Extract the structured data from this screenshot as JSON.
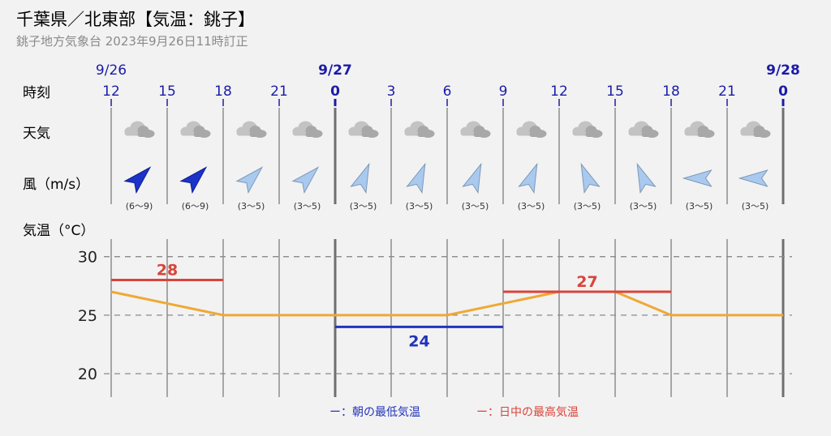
{
  "header": {
    "title": "千葉県／北東部【気温：銚子】",
    "subtitle": "銚子地方気象台 2023年9月26日11時訂正"
  },
  "row_labels": {
    "time": "時刻",
    "weather": "天気",
    "wind": "風（m/s）",
    "temp": "気温（°C）"
  },
  "dates": [
    {
      "label": "9/26",
      "col": 0
    },
    {
      "label": "9/27",
      "col": 4
    },
    {
      "label": "9/28",
      "col": 12
    }
  ],
  "hours": [
    "12",
    "15",
    "18",
    "21",
    "0",
    "3",
    "6",
    "9",
    "12",
    "15",
    "18",
    "21",
    "0"
  ],
  "day_boundary_cols": [
    4,
    12
  ],
  "weather": [
    "cloudy",
    "cloudy",
    "cloudy",
    "cloudy",
    "cloudy",
    "cloudy",
    "cloudy",
    "cloudy",
    "cloudy",
    "cloudy",
    "cloudy",
    "cloudy"
  ],
  "wind": [
    {
      "speed": "(6〜9)",
      "dir": "SW",
      "strong": true
    },
    {
      "speed": "(6〜9)",
      "dir": "SW",
      "strong": true
    },
    {
      "speed": "(3〜5)",
      "dir": "SW",
      "strong": false
    },
    {
      "speed": "(3〜5)",
      "dir": "SW",
      "strong": false
    },
    {
      "speed": "(3〜5)",
      "dir": "SSW",
      "strong": false
    },
    {
      "speed": "(3〜5)",
      "dir": "SSW",
      "strong": false
    },
    {
      "speed": "(3〜5)",
      "dir": "SSW",
      "strong": false
    },
    {
      "speed": "(3〜5)",
      "dir": "SSW",
      "strong": false
    },
    {
      "speed": "(3〜5)",
      "dir": "SSE",
      "strong": false
    },
    {
      "speed": "(3〜5)",
      "dir": "SSE",
      "strong": false
    },
    {
      "speed": "(3〜5)",
      "dir": "E",
      "strong": false
    },
    {
      "speed": "(3〜5)",
      "dir": "E",
      "strong": false
    }
  ],
  "colors": {
    "date": "#1c1ca8",
    "temp_line": "#f0a834",
    "max": "#d9443a",
    "min": "#2233bb",
    "wind_strong": "#1b33c9",
    "wind_weak": "#a9c9ee"
  },
  "legend": {
    "min_label": "ー：朝の最低気温",
    "max_label": "ー：日中の最高気温"
  },
  "chart_data": {
    "type": "line",
    "x": [
      "9/26 12",
      "9/26 15",
      "9/26 18",
      "9/26 21",
      "9/27 0",
      "9/27 3",
      "9/27 6",
      "9/27 9",
      "9/27 12",
      "9/27 15",
      "9/27 18",
      "9/27 21",
      "9/28 0"
    ],
    "series": [
      {
        "name": "",
        "values": [
          27,
          26,
          25,
          25,
          25,
          25,
          25,
          26,
          27,
          27,
          25,
          25,
          25
        ]
      }
    ],
    "yticks": [
      30,
      25,
      20
    ],
    "ylim": [
      18,
      31.5
    ],
    "ylabel": "気温（°C）",
    "grid": true,
    "max_temps": [
      {
        "value": 28,
        "label": "28",
        "from": 0,
        "to": 2
      },
      {
        "value": 27,
        "label": "27",
        "from": 7,
        "to": 10
      }
    ],
    "min_temps": [
      {
        "value": 24,
        "label": "24",
        "from": 4,
        "to": 7
      }
    ]
  }
}
